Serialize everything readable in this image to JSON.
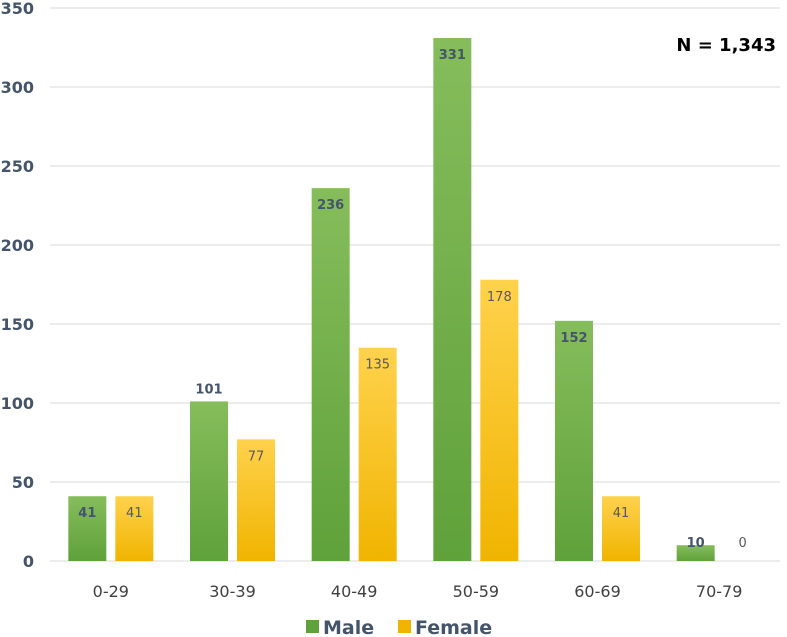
{
  "colors": {
    "male_top": "#86bd5c",
    "male_bottom": "#5fa13a",
    "female_top": "#ffd24d",
    "female_bottom": "#f0b400",
    "grid": "#d9d9d9",
    "axis_text": "#44546a",
    "male_label": "#44546a",
    "female_label": "#595959"
  },
  "chart_data": {
    "type": "bar",
    "categories": [
      "0-29",
      "30-39",
      "40-49",
      "50-59",
      "60-69",
      "70-79"
    ],
    "series": [
      {
        "name": "Male",
        "values": [
          41,
          101,
          236,
          331,
          152,
          10
        ]
      },
      {
        "name": "Female",
        "values": [
          41,
          77,
          135,
          178,
          41,
          0
        ]
      }
    ],
    "ylim": [
      0,
      350
    ],
    "yticks": [
      0,
      50,
      100,
      150,
      200,
      250,
      300,
      350
    ],
    "grid": true,
    "legend": "bottom",
    "annotation": "N = 1,343",
    "title": "",
    "xlabel": "",
    "ylabel": ""
  }
}
